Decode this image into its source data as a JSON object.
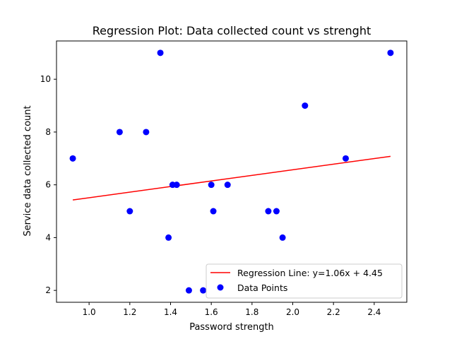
{
  "chart_data": {
    "type": "scatter",
    "title": "Regression Plot: Data collected count vs strenght",
    "xlabel": "Password strength",
    "ylabel": "Service data collected count",
    "xlim": [
      0.84,
      2.56
    ],
    "ylim": [
      1.55,
      11.45
    ],
    "xticks": [
      1.0,
      1.2,
      1.4,
      1.6,
      1.8,
      2.0,
      2.2,
      2.4
    ],
    "xtick_labels": [
      "1.0",
      "1.2",
      "1.4",
      "1.6",
      "1.8",
      "2.0",
      "2.2",
      "2.4"
    ],
    "yticks": [
      2,
      4,
      6,
      8,
      10
    ],
    "ytick_labels": [
      "2",
      "4",
      "6",
      "8",
      "10"
    ],
    "grid": false,
    "legend_position": "bottom-right",
    "series": [
      {
        "name": "Data Points",
        "kind": "scatter",
        "color": "#0000ff",
        "x": [
          0.92,
          1.15,
          1.2,
          1.28,
          1.35,
          1.39,
          1.41,
          1.43,
          1.49,
          1.56,
          1.6,
          1.61,
          1.68,
          1.88,
          1.92,
          1.95,
          2.06,
          2.26,
          2.48
        ],
        "y": [
          7,
          8,
          5,
          8,
          11,
          4,
          6,
          6,
          2,
          2,
          6,
          5,
          6,
          5,
          5,
          4,
          9,
          7,
          11
        ]
      },
      {
        "name": "Regression Line: y=1.06x + 4.45",
        "kind": "line",
        "color": "#ff0000",
        "slope": 1.06,
        "intercept": 4.45,
        "x_range": [
          0.92,
          2.48
        ]
      }
    ]
  }
}
